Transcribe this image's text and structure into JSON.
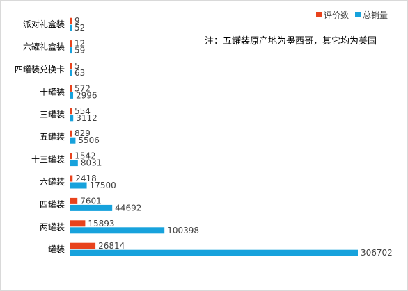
{
  "chart_data": {
    "type": "bar",
    "orientation": "horizontal",
    "categories": [
      "派对礼盒装",
      "六罐礼盒装",
      "四罐装兑换卡",
      "十罐装",
      "三罐装",
      "五罐装",
      "十三罐装",
      "六罐装",
      "四罐装",
      "两罐装",
      "一罐装"
    ],
    "series": [
      {
        "name": "评价数",
        "color": "#e8431d",
        "values": [
          9,
          12,
          5,
          572,
          554,
          829,
          1542,
          2418,
          7601,
          15893,
          26814
        ]
      },
      {
        "name": "总销量",
        "color": "#17a2dc",
        "values": [
          52,
          59,
          63,
          2996,
          3112,
          5506,
          8031,
          17500,
          44692,
          100398,
          306702
        ]
      }
    ],
    "xlim": [
      0,
      306702
    ],
    "legend": "top-right",
    "grid": false,
    "annotation": "注：五罐装原产地为墨西哥，其它均为美国"
  }
}
